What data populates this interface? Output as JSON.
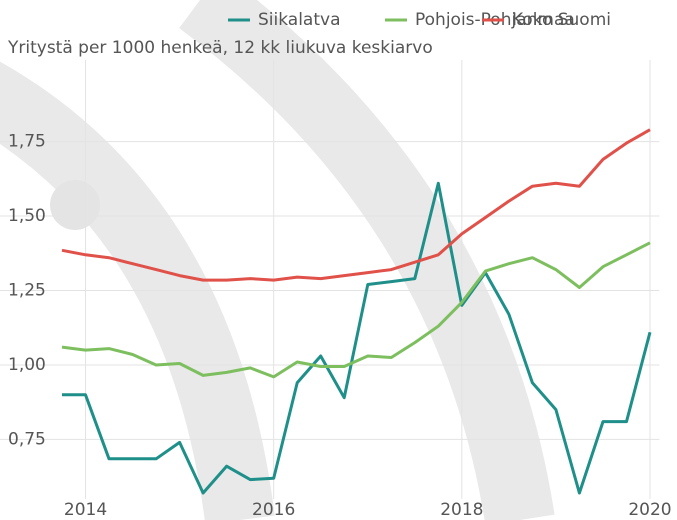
{
  "chart_data": {
    "type": "line",
    "subtitle": "Yritystä per 1000 henkeä, 12 kk liukuva keskiarvo",
    "x": [
      2013.75,
      2014,
      2014.25,
      2014.5,
      2014.75,
      2015,
      2015.25,
      2015.5,
      2015.75,
      2016,
      2016.25,
      2016.5,
      2016.75,
      2017,
      2017.25,
      2017.5,
      2017.75,
      2018,
      2018.25,
      2018.5,
      2018.75,
      2019,
      2019.25,
      2019.5,
      2019.75,
      2020
    ],
    "series": [
      {
        "name": "Siikalatva",
        "color": "#1f8f8a",
        "values": [
          0.9,
          0.9,
          0.685,
          0.685,
          0.685,
          0.74,
          0.57,
          0.66,
          0.615,
          0.62,
          0.94,
          1.03,
          0.89,
          1.27,
          1.28,
          1.29,
          1.61,
          1.2,
          1.31,
          1.17,
          0.94,
          0.85,
          0.57,
          0.81,
          0.81,
          1.11
        ]
      },
      {
        "name": "Pohjois-Pohjanmaa",
        "color": "#7dbf5f",
        "values": [
          1.06,
          1.05,
          1.055,
          1.035,
          1.0,
          1.005,
          0.965,
          0.975,
          0.99,
          0.96,
          1.01,
          0.995,
          0.995,
          1.03,
          1.025,
          1.075,
          1.13,
          1.21,
          1.315,
          1.34,
          1.36,
          1.32,
          1.26,
          1.33,
          1.37,
          1.41
        ]
      },
      {
        "name": "Koko Suomi",
        "color": "#e0514a",
        "values": [
          1.385,
          1.37,
          1.36,
          1.34,
          1.32,
          1.3,
          1.285,
          1.285,
          1.29,
          1.285,
          1.295,
          1.29,
          1.3,
          1.31,
          1.32,
          1.345,
          1.37,
          1.44,
          1.495,
          1.55,
          1.6,
          1.61,
          1.6,
          1.69,
          1.745,
          1.79
        ]
      }
    ],
    "xlim": [
      2013.7,
      2020.1
    ],
    "xticks": [
      2014,
      2016,
      2018,
      2020
    ],
    "ylim": [
      0.55,
      1.95
    ],
    "yticks": [
      {
        "value": 0.75,
        "label": "0,75"
      },
      {
        "value": 1.0,
        "label": "1,00"
      },
      {
        "value": 1.25,
        "label": "1,25"
      },
      {
        "value": 1.5,
        "label": "1,50"
      },
      {
        "value": 1.75,
        "label": "1,75"
      }
    ],
    "grid": true,
    "legend": "top"
  }
}
